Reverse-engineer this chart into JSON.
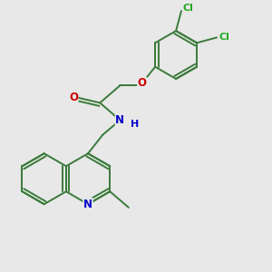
{
  "bg_color": "#e8e8e8",
  "bond_color": "#3a7a3a",
  "atom_colors": {
    "O": "#cc0000",
    "N": "#0000cc",
    "Cl": "#22aa22",
    "C": "#3a7a3a"
  },
  "font_size": 8.0,
  "line_width": 1.4
}
